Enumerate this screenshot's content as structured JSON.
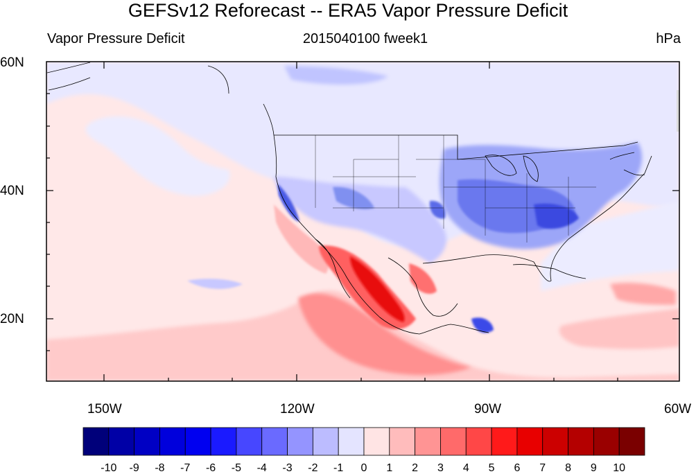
{
  "title": "GEFSv12 Reforecast -- ERA5 Vapor Pressure Deficit",
  "subtitle_left": "Vapor Pressure Deficit",
  "subtitle_center": "2015040100 fweek1",
  "subtitle_right": "hPa",
  "lat_labels": [
    "60N",
    "40N",
    "20N"
  ],
  "lon_labels": [
    "150W",
    "120W",
    "90W",
    "60W"
  ],
  "colorbar": {
    "labels": [
      "-10",
      "-9",
      "-8",
      "-7",
      "-6",
      "-5",
      "-4",
      "-3",
      "-2",
      "-1",
      "0",
      "1",
      "2",
      "3",
      "4",
      "5",
      "6",
      "7",
      "8",
      "9",
      "10"
    ],
    "colors": [
      "#00007a",
      "#0000a6",
      "#0000c4",
      "#0000dc",
      "#0000f0",
      "#1a1aff",
      "#4747ff",
      "#6a6aff",
      "#9494ff",
      "#bcbcff",
      "#e4e4ff",
      "#ffe4e4",
      "#ffbcbc",
      "#ff9494",
      "#ff6a6a",
      "#ff4747",
      "#ff1a1a",
      "#e80000",
      "#cc0000",
      "#b40000",
      "#9a0000",
      "#7a0000"
    ]
  },
  "colors": {
    "ocean_light_red": "#ffe8e8",
    "north_light_blue": "#e6e6ff",
    "blue_anomaly": "#6e7cf0",
    "red_anomaly": "#e81818"
  }
}
